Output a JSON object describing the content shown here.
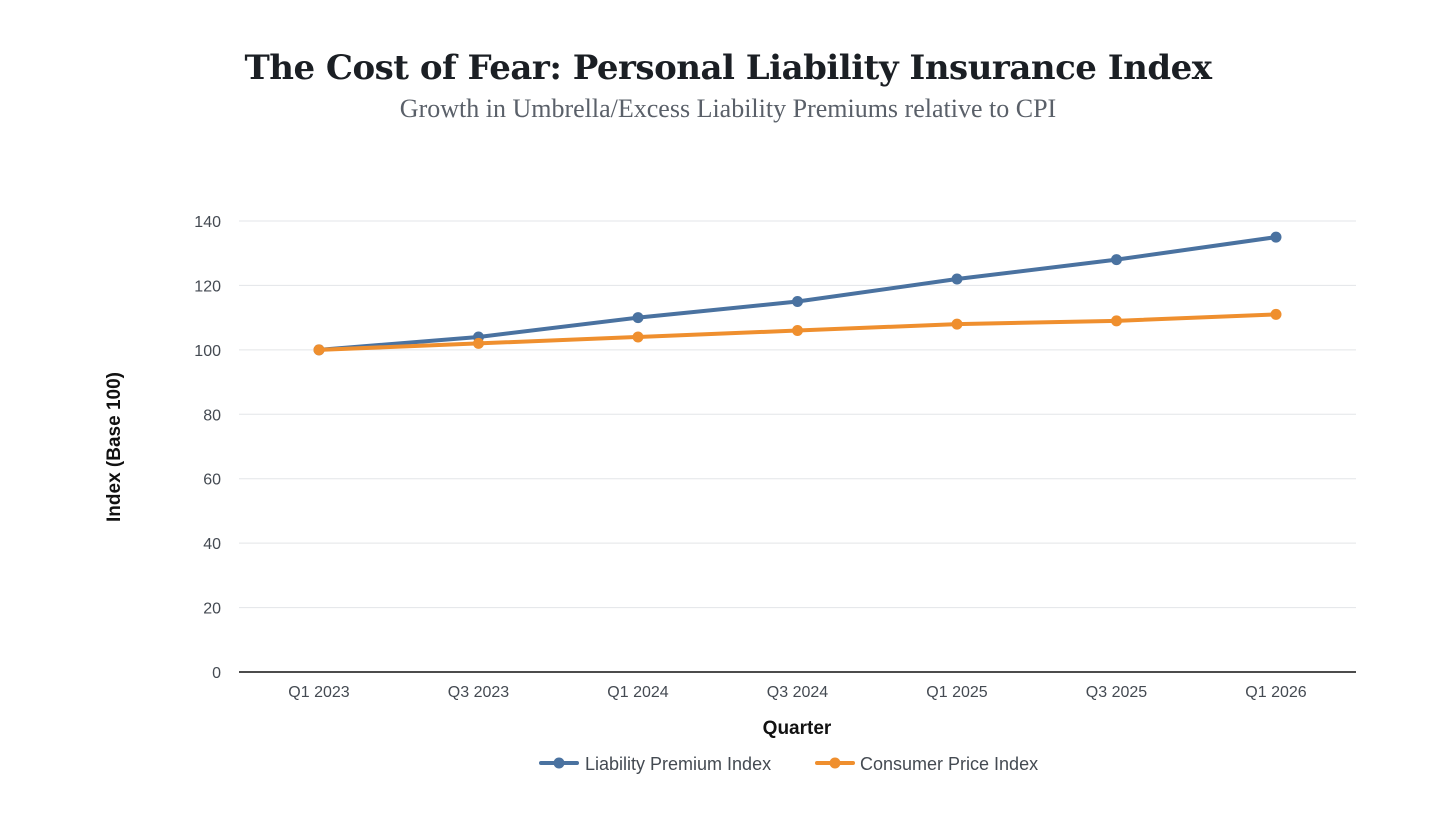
{
  "chart_data": {
    "type": "line",
    "title": "The Cost of Fear: Personal Liability Insurance Index",
    "subtitle": "Growth in Umbrella/Excess Liability Premiums relative to CPI",
    "xlabel": "Quarter",
    "ylabel": "Index (Base 100)",
    "categories": [
      "Q1 2023",
      "Q3 2023",
      "Q1 2024",
      "Q3 2024",
      "Q1 2025",
      "Q3 2025",
      "Q1 2026"
    ],
    "ylim": [
      0,
      140
    ],
    "yticks": [
      0,
      20,
      40,
      60,
      80,
      100,
      120,
      140
    ],
    "grid": true,
    "legend_position": "bottom-center",
    "series": [
      {
        "name": "Liability Premium Index",
        "color": "#4a72a0",
        "values": [
          100,
          104,
          110,
          115,
          122,
          128,
          135
        ]
      },
      {
        "name": "Consumer Price Index",
        "color": "#ef8f2e",
        "values": [
          100,
          102,
          104,
          106,
          108,
          109,
          111
        ]
      }
    ]
  }
}
